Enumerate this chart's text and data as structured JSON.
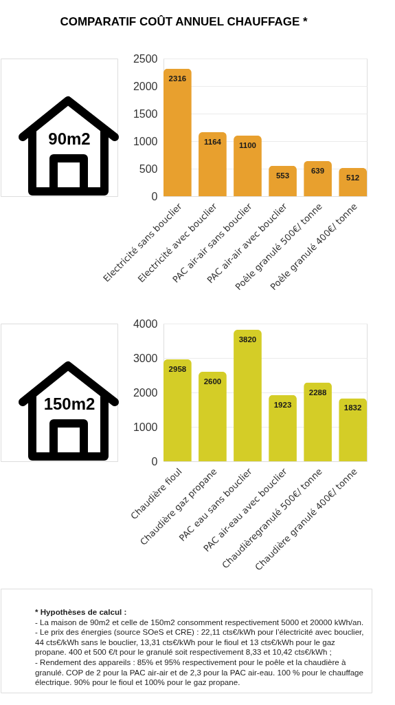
{
  "chart_data": [
    {
      "type": "bar",
      "title": "COMPARATIF COÛT ANNUEL CHAUFFAGE *",
      "annotations": [
        "90m2"
      ],
      "categories": [
        "Electricité sans bouclier",
        "Electricité avec bouclier",
        "PAC air-air sans bouclier",
        "PAC air-air avec bouclier",
        "Poêle granulé 500€/ tonne",
        "Poêle granulé  400€/ tonne"
      ],
      "values": [
        2316,
        1164,
        1100,
        553,
        639,
        512
      ],
      "color": "#e8a02e",
      "ylim": [
        0,
        2500
      ],
      "yticks": [
        0,
        500,
        1000,
        1500,
        2000,
        2500
      ],
      "grid": "y",
      "data_labels": true
    },
    {
      "type": "bar",
      "annotations": [
        "150m2"
      ],
      "categories": [
        "Chaudière fioul",
        "Chaudière gaz propane",
        "PAC eau sans bouclier",
        "PAC air-eau avec bouclier",
        "Chaudièregranulé 500€/ tonne",
        "Chaudière granulé  400€/ tonne"
      ],
      "values": [
        2958,
        2600,
        3820,
        1923,
        2288,
        1832
      ],
      "color": "#d4cd27",
      "ylim": [
        0,
        4000
      ],
      "yticks": [
        0,
        1000,
        2000,
        3000,
        4000
      ],
      "grid": "y",
      "data_labels": true
    },
    {
      "type": "other",
      "title": "* Hypothèses de calcul :",
      "annotations": [
        "- La maison de 90m2 et celle de 150m2 consomment respectivement 5000 et 20000 kWh/an.",
        "- Le prix des énergies (source SOeS et CRE) : 22,11 cts€/kWh pour l’électricité avec bouclier,",
        "44 cts€/kWh sans le bouclier, 13,31 cts€/kWh pour le fioul et 13 cts€/kWh pour le gaz",
        "propane. 400 et 500 €/t pour le granulé soit respectivement 8,33 et 10,42 cts€/kWh ;",
        "- Rendement des appareils : 85% et 95% respectivement pour le poêle et la chaudière à",
        "granulé. COP de 2 pour la PAC air-air et de 2,3 pour la PAC air-eau. 100 % pour le chauffage",
        "électrique. 90% pour le fioul et 100% pour le gaz propane."
      ]
    }
  ]
}
